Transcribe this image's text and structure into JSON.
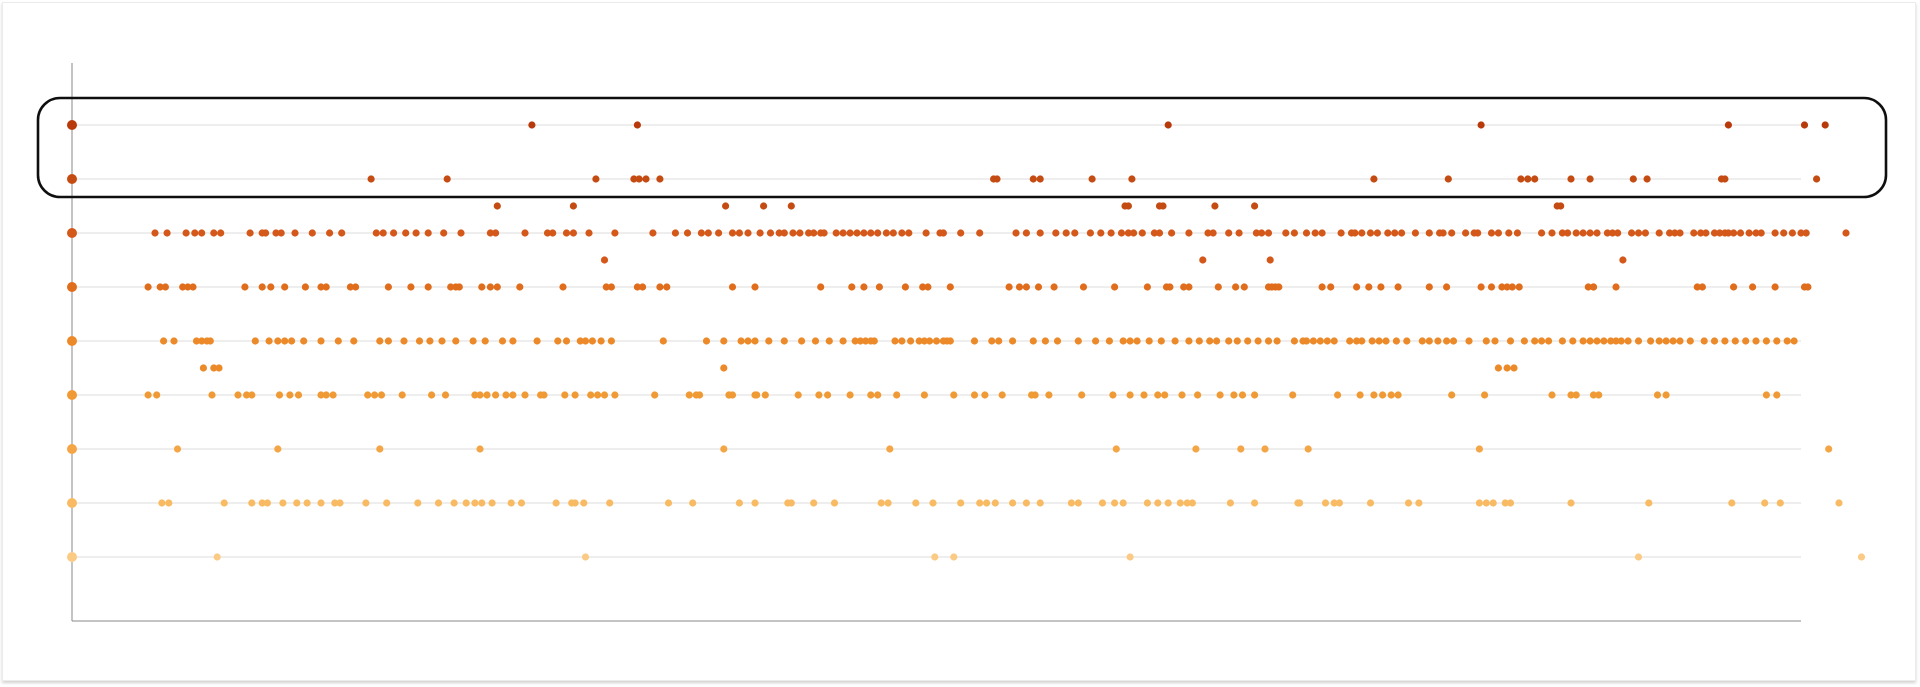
{
  "chart_data": {
    "type": "scatter",
    "title": "",
    "xlabel": "",
    "ylabel": "",
    "xlim": [
      0,
      1000
    ],
    "grid": true,
    "legend": "none",
    "highlight": {
      "rows": [
        0,
        1
      ],
      "style": "rounded-outline"
    },
    "row_colors": [
      "#b83a0b",
      "#c44c12",
      "#d4581a",
      "#e06d1c",
      "#ec8929",
      "#f09a35",
      "#f4a646",
      "#f8bb63",
      "#fbcb85"
    ],
    "rows": [
      {
        "base": [
          0,
          266,
          327,
          634,
          815,
          958,
          1002,
          1014
        ],
        "secondary": []
      },
      {
        "base": [
          0,
          173,
          217,
          303,
          325,
          328,
          332,
          340,
          533,
          535,
          556,
          560,
          590,
          613,
          753,
          796,
          838,
          842,
          846,
          867,
          878,
          903,
          911,
          954,
          956,
          1009
        ],
        "secondary": [
          246,
          290,
          378,
          400,
          416,
          609,
          611,
          629,
          631,
          661,
          684,
          859,
          861
        ]
      },
      {
        "base": [
          0,
          48,
          55,
          66,
          71,
          75,
          82,
          86,
          103,
          110,
          112,
          118,
          121,
          129,
          139,
          149,
          156,
          176,
          180,
          186,
          193,
          199,
          206,
          215,
          225,
          242,
          245,
          262,
          275,
          278,
          286,
          290,
          299,
          314,
          336,
          349,
          356,
          364,
          368,
          374,
          382,
          386,
          391,
          398,
          404,
          409,
          412,
          417,
          421,
          426,
          429,
          433,
          435,
          442,
          446,
          450,
          454,
          458,
          462,
          466,
          471,
          475,
          480,
          484,
          494,
          502,
          504,
          514,
          525,
          546,
          552,
          560,
          569,
          575,
          580,
          589,
          595,
          601,
          607,
          611,
          614,
          619,
          626,
          629,
          636,
          646,
          657,
          660,
          669,
          675,
          685,
          688,
          692,
          702,
          707,
          714,
          719,
          723,
          734,
          740,
          742,
          746,
          751,
          755,
          761,
          765,
          769,
          777,
          785,
          791,
          793,
          798,
          806,
          811,
          813,
          821,
          825,
          831,
          836,
          850,
          856,
          862,
          865,
          870,
          874,
          878,
          882,
          888,
          891,
          894,
          902,
          906,
          910,
          918,
          924,
          927,
          930,
          938,
          942,
          945,
          950,
          953,
          956,
          958,
          961,
          965,
          970,
          974,
          977,
          985,
          990,
          995,
          1000,
          1003,
          1026
        ],
        "secondary": [
          308,
          654,
          693,
          897
        ]
      },
      {
        "base": [
          0,
          44,
          51,
          54,
          64,
          67,
          70,
          100,
          110,
          115,
          123,
          135,
          144,
          147,
          161,
          164,
          183,
          196,
          206,
          219,
          222,
          224,
          237,
          242,
          246,
          259,
          284,
          309,
          312,
          327,
          330,
          340,
          344,
          382,
          395,
          433,
          451,
          458,
          467,
          482,
          492,
          495,
          508,
          542,
          548,
          552,
          559,
          568,
          585,
          603,
          622,
          633,
          635,
          643,
          646,
          663,
          673,
          678,
          692,
          694,
          696,
          698,
          723,
          728,
          743,
          750,
          757,
          767,
          785,
          795,
          815,
          821,
          827,
          830,
          833,
          837,
          877,
          880,
          880,
          893,
          940,
          943,
          961,
          972,
          985,
          1002,
          1004
        ],
        "secondary": []
      },
      {
        "base": [
          0,
          53,
          59,
          72,
          75,
          78,
          80,
          106,
          114,
          119,
          123,
          127,
          134,
          144,
          154,
          163,
          178,
          183,
          192,
          201,
          207,
          214,
          222,
          232,
          239,
          249,
          255,
          269,
          281,
          286,
          294,
          297,
          301,
          306,
          312,
          342,
          367,
          377,
          387,
          391,
          395,
          403,
          412,
          422,
          430,
          438,
          446,
          453,
          456,
          459,
          462,
          464,
          476,
          480,
          485,
          490,
          493,
          496,
          500,
          504,
          506,
          508,
          522,
          532,
          536,
          544,
          556,
          563,
          570,
          582,
          592,
          600,
          608,
          612,
          616,
          623,
          630,
          638,
          646,
          652,
          658,
          662,
          669,
          674,
          680,
          686,
          692,
          697,
          707,
          712,
          714,
          718,
          722,
          726,
          730,
          739,
          743,
          746,
          752,
          756,
          760,
          766,
          772,
          781,
          785,
          790,
          795,
          799,
          808,
          818,
          823,
          832,
          840,
          846,
          850,
          854,
          862,
          868,
          874,
          878,
          882,
          886,
          890,
          893,
          896,
          900,
          906,
          913,
          918,
          922,
          926,
          930,
          936,
          944,
          950,
          956,
          962,
          968,
          974,
          980,
          986,
          992,
          996
        ],
        "secondary": [
          76,
          82,
          85,
          377,
          825,
          830,
          834
        ]
      },
      {
        "base": [
          0,
          44,
          49,
          81,
          96,
          101,
          104,
          120,
          126,
          131,
          144,
          147,
          151,
          171,
          175,
          179,
          191,
          208,
          216,
          233,
          236,
          240,
          245,
          251,
          255,
          262,
          271,
          273,
          285,
          291,
          300,
          304,
          308,
          314,
          337,
          357,
          361,
          363,
          380,
          380,
          382,
          395,
          396,
          401,
          420,
          432,
          437,
          450,
          462,
          466,
          477,
          493,
          510,
          522,
          528,
          538,
          555,
          557,
          565,
          584,
          602,
          612,
          620,
          628,
          632,
          642,
          651,
          664,
          672,
          677,
          684,
          706,
          732,
          745,
          753,
          758,
          763,
          767,
          798,
          817,
          856,
          867,
          870,
          880,
          883,
          917,
          922,
          980,
          986
        ],
        "secondary": []
      },
      {
        "base": [
          0,
          61,
          119,
          178,
          236,
          377,
          473,
          604,
          650,
          676,
          690,
          715,
          814,
          1016
        ],
        "secondary": []
      },
      {
        "base": [
          0,
          52,
          56,
          88,
          104,
          110,
          113,
          122,
          130,
          136,
          144,
          152,
          155,
          170,
          182,
          200,
          212,
          221,
          228,
          233,
          237,
          243,
          254,
          260,
          280,
          289,
          291,
          296,
          311,
          345,
          359,
          386,
          395,
          414,
          416,
          429,
          441,
          468,
          472,
          488,
          498,
          514,
          525,
          529,
          534,
          544,
          552,
          560,
          578,
          582,
          596,
          603,
          608,
          622,
          628,
          634,
          641,
          645,
          648,
          670,
          684,
          709,
          710,
          725,
          730,
          733,
          751,
          773,
          779,
          814,
          818,
          822,
          829,
          832,
          867,
          912,
          960,
          979,
          988,
          1022
        ],
        "secondary": []
      },
      {
        "base": [
          0,
          84,
          297,
          499,
          510,
          612,
          906,
          1035
        ],
        "secondary": []
      }
    ]
  }
}
